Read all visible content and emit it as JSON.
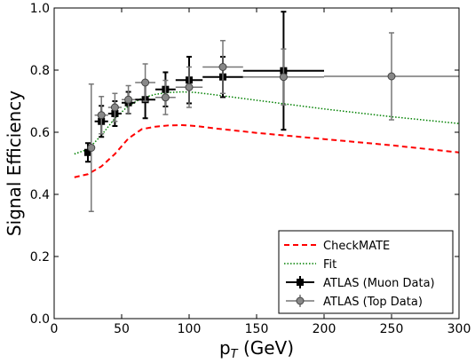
{
  "chart_data": {
    "type": "scatter",
    "xlabel": "p",
    "xlabel_sub": "T",
    "xlabel_unit": " (GeV)",
    "ylabel": "Signal Efficiency",
    "xlim": [
      0,
      300
    ],
    "ylim": [
      0.0,
      1.0
    ],
    "xticks": [
      0,
      50,
      100,
      150,
      200,
      250,
      300
    ],
    "yticks": [
      0.0,
      0.2,
      0.4,
      0.6,
      0.8,
      1.0
    ],
    "xtick_labels": [
      "0",
      "50",
      "100",
      "150",
      "200",
      "250",
      "300"
    ],
    "ytick_labels": [
      "0.0",
      "0.2",
      "0.4",
      "0.6",
      "0.8",
      "1.0"
    ],
    "grid": false,
    "legend_position": "bottom-right",
    "series": [
      {
        "name": "CheckMATE",
        "kind": "line",
        "style": "dashed",
        "color": "#ff0000",
        "x": [
          15,
          25,
          35,
          45,
          55,
          65,
          75,
          85,
          95,
          105,
          120,
          150,
          200,
          250,
          300
        ],
        "y": [
          0.455,
          0.465,
          0.49,
          0.53,
          0.58,
          0.61,
          0.618,
          0.622,
          0.623,
          0.62,
          0.612,
          0.598,
          0.578,
          0.558,
          0.535
        ]
      },
      {
        "name": "Fit",
        "kind": "line",
        "style": "dotted",
        "color": "#008000",
        "x": [
          15,
          25,
          35,
          45,
          55,
          65,
          75,
          85,
          95,
          105,
          120,
          150,
          200,
          250,
          300
        ],
        "y": [
          0.53,
          0.545,
          0.59,
          0.645,
          0.685,
          0.71,
          0.722,
          0.728,
          0.73,
          0.728,
          0.72,
          0.703,
          0.675,
          0.65,
          0.628
        ]
      },
      {
        "name": "ATLAS (Muon Data)",
        "kind": "errorbar",
        "marker": "square",
        "color": "#000000",
        "points": [
          {
            "x": 25,
            "y": 0.535,
            "xerr": 2.5,
            "yerr": 0.03
          },
          {
            "x": 35,
            "y": 0.635,
            "xerr": 5,
            "yerr": 0.05
          },
          {
            "x": 45,
            "y": 0.66,
            "xerr": 5,
            "yerr": 0.04
          },
          {
            "x": 55,
            "y": 0.695,
            "xerr": 5,
            "yerr": 0.035
          },
          {
            "x": 67.5,
            "y": 0.705,
            "xerr": 7.5,
            "yerr": 0.06
          },
          {
            "x": 82.5,
            "y": 0.738,
            "xerr": 7.5,
            "yerr": 0.055
          },
          {
            "x": 100,
            "y": 0.768,
            "xerr": 10,
            "yerr": 0.075
          },
          {
            "x": 125,
            "y": 0.778,
            "xerr": 15,
            "yerr": 0.065
          },
          {
            "x": 170,
            "y": 0.798,
            "xerr": 30,
            "yerr": 0.19
          }
        ]
      },
      {
        "name": "ATLAS (Top Data)",
        "kind": "errorbar",
        "marker": "circle",
        "color": "#777777",
        "points": [
          {
            "x": 27.5,
            "y": 0.55,
            "xerr": 2.5,
            "yerr": 0.205
          },
          {
            "x": 35,
            "y": 0.655,
            "xerr": 5,
            "yerr": 0.06
          },
          {
            "x": 45,
            "y": 0.68,
            "xerr": 5,
            "yerr": 0.045
          },
          {
            "x": 55,
            "y": 0.705,
            "xerr": 5,
            "yerr": 0.045
          },
          {
            "x": 67.5,
            "y": 0.76,
            "xerr": 7.5,
            "yerr": 0.06
          },
          {
            "x": 82.5,
            "y": 0.712,
            "xerr": 7.5,
            "yerr": 0.055
          },
          {
            "x": 100,
            "y": 0.745,
            "xerr": 10,
            "yerr": 0.065
          },
          {
            "x": 125,
            "y": 0.81,
            "xerr": 15,
            "yerr": 0.085
          },
          {
            "x": 170,
            "y": 0.778,
            "xerr": 30,
            "yerr": 0.09
          },
          {
            "x": 250,
            "y": 0.78,
            "xerr": 50,
            "yerr": 0.14
          }
        ]
      }
    ]
  }
}
